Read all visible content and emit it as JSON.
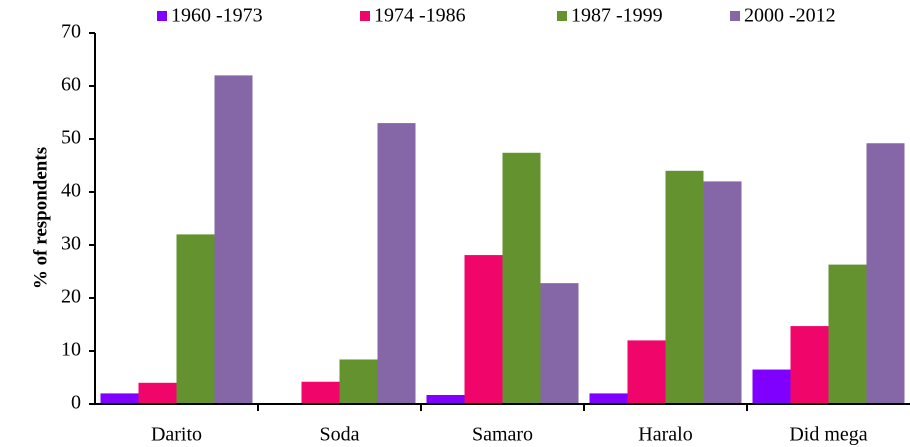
{
  "chart_data": {
    "type": "bar",
    "y_label": "% of respondents",
    "categories": [
      "Darito",
      "Soda",
      "Samaro",
      "Haralo",
      "Did mega"
    ],
    "series": [
      {
        "name": "1960 -1973",
        "color": "#8000ff",
        "values": [
          2,
          0,
          1.7,
          2,
          6.5
        ]
      },
      {
        "name": "1974 -1986",
        "color": "#f0066a",
        "values": [
          4,
          4.2,
          28.1,
          12,
          14.7
        ]
      },
      {
        "name": "1987 -1999",
        "color": "#63922f",
        "values": [
          32,
          8.4,
          47.4,
          44,
          26.3
        ]
      },
      {
        "name": "2000 -2012",
        "color": "#8566a6",
        "values": [
          62,
          53,
          22.8,
          42,
          49.2
        ]
      }
    ],
    "ylim": [
      0,
      70
    ],
    "yticks": [
      0,
      10,
      20,
      30,
      40,
      50,
      60,
      70
    ],
    "legend": "top"
  }
}
